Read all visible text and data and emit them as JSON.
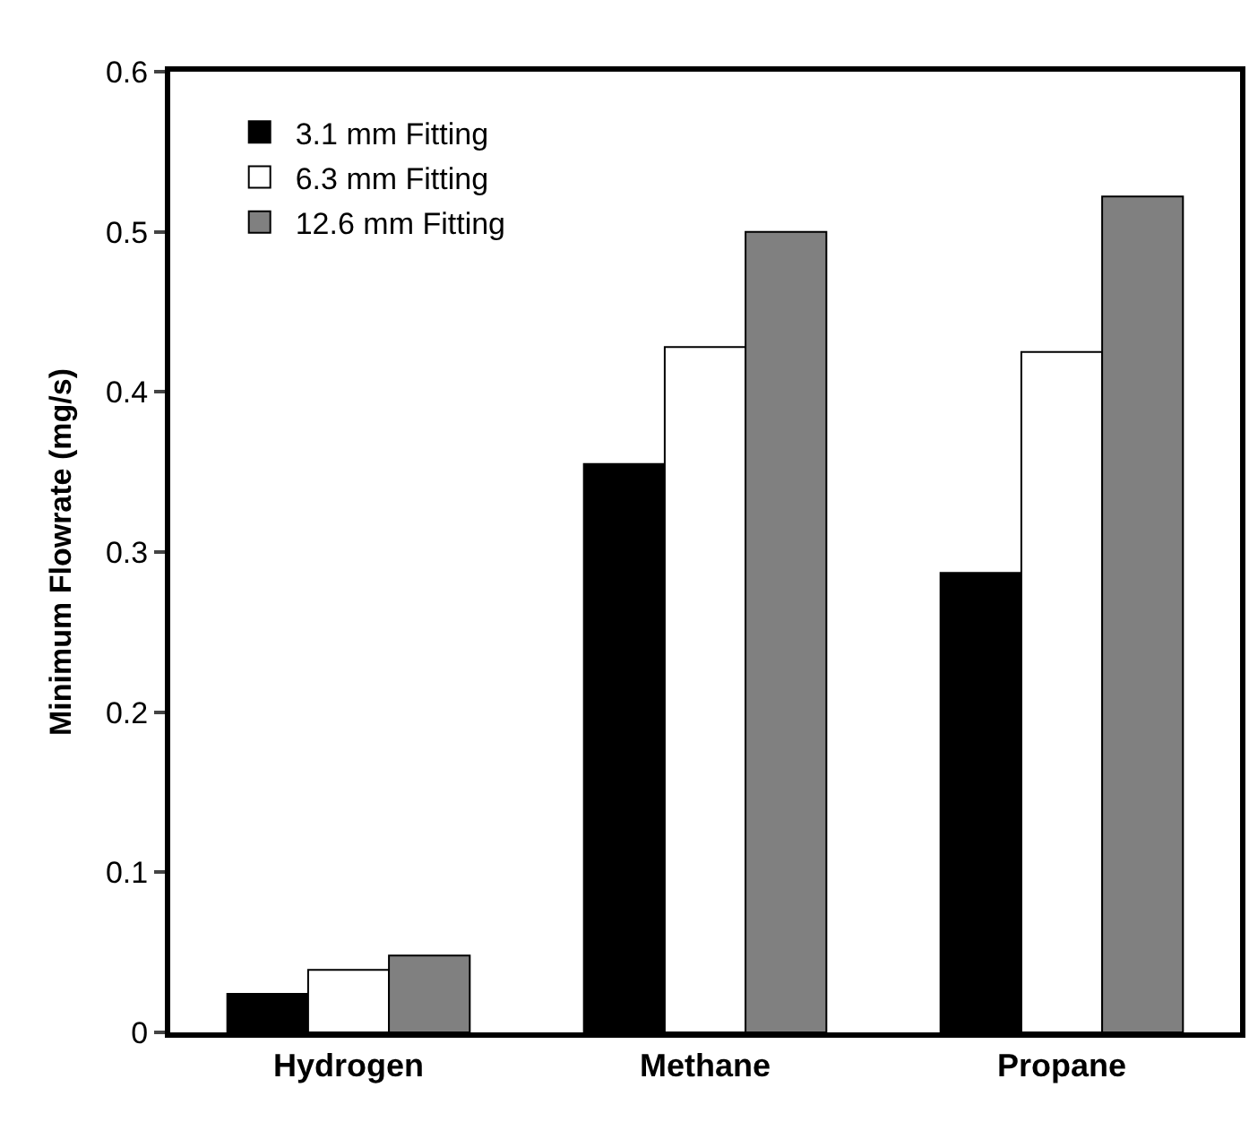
{
  "chart_data": {
    "type": "bar",
    "ylabel": "Minimum Flowrate (mg/s)",
    "categories": [
      "Hydrogen",
      "Methane",
      "Propane"
    ],
    "series": [
      {
        "name": "3.1 mm Fitting",
        "color": "#000000",
        "values": [
          0.024,
          0.355,
          0.287
        ]
      },
      {
        "name": "6.3 mm Fitting",
        "color": "#ffffff",
        "values": [
          0.039,
          0.428,
          0.425
        ]
      },
      {
        "name": "12.6 mm Fitting",
        "color": "#808080",
        "values": [
          0.048,
          0.5,
          0.522
        ]
      }
    ],
    "ylim": [
      0,
      0.6
    ],
    "yticks": [
      {
        "value": 0,
        "label": "0"
      },
      0.1,
      0.2,
      0.3,
      0.4,
      0.5,
      0.6
    ],
    "legend": "top left"
  }
}
